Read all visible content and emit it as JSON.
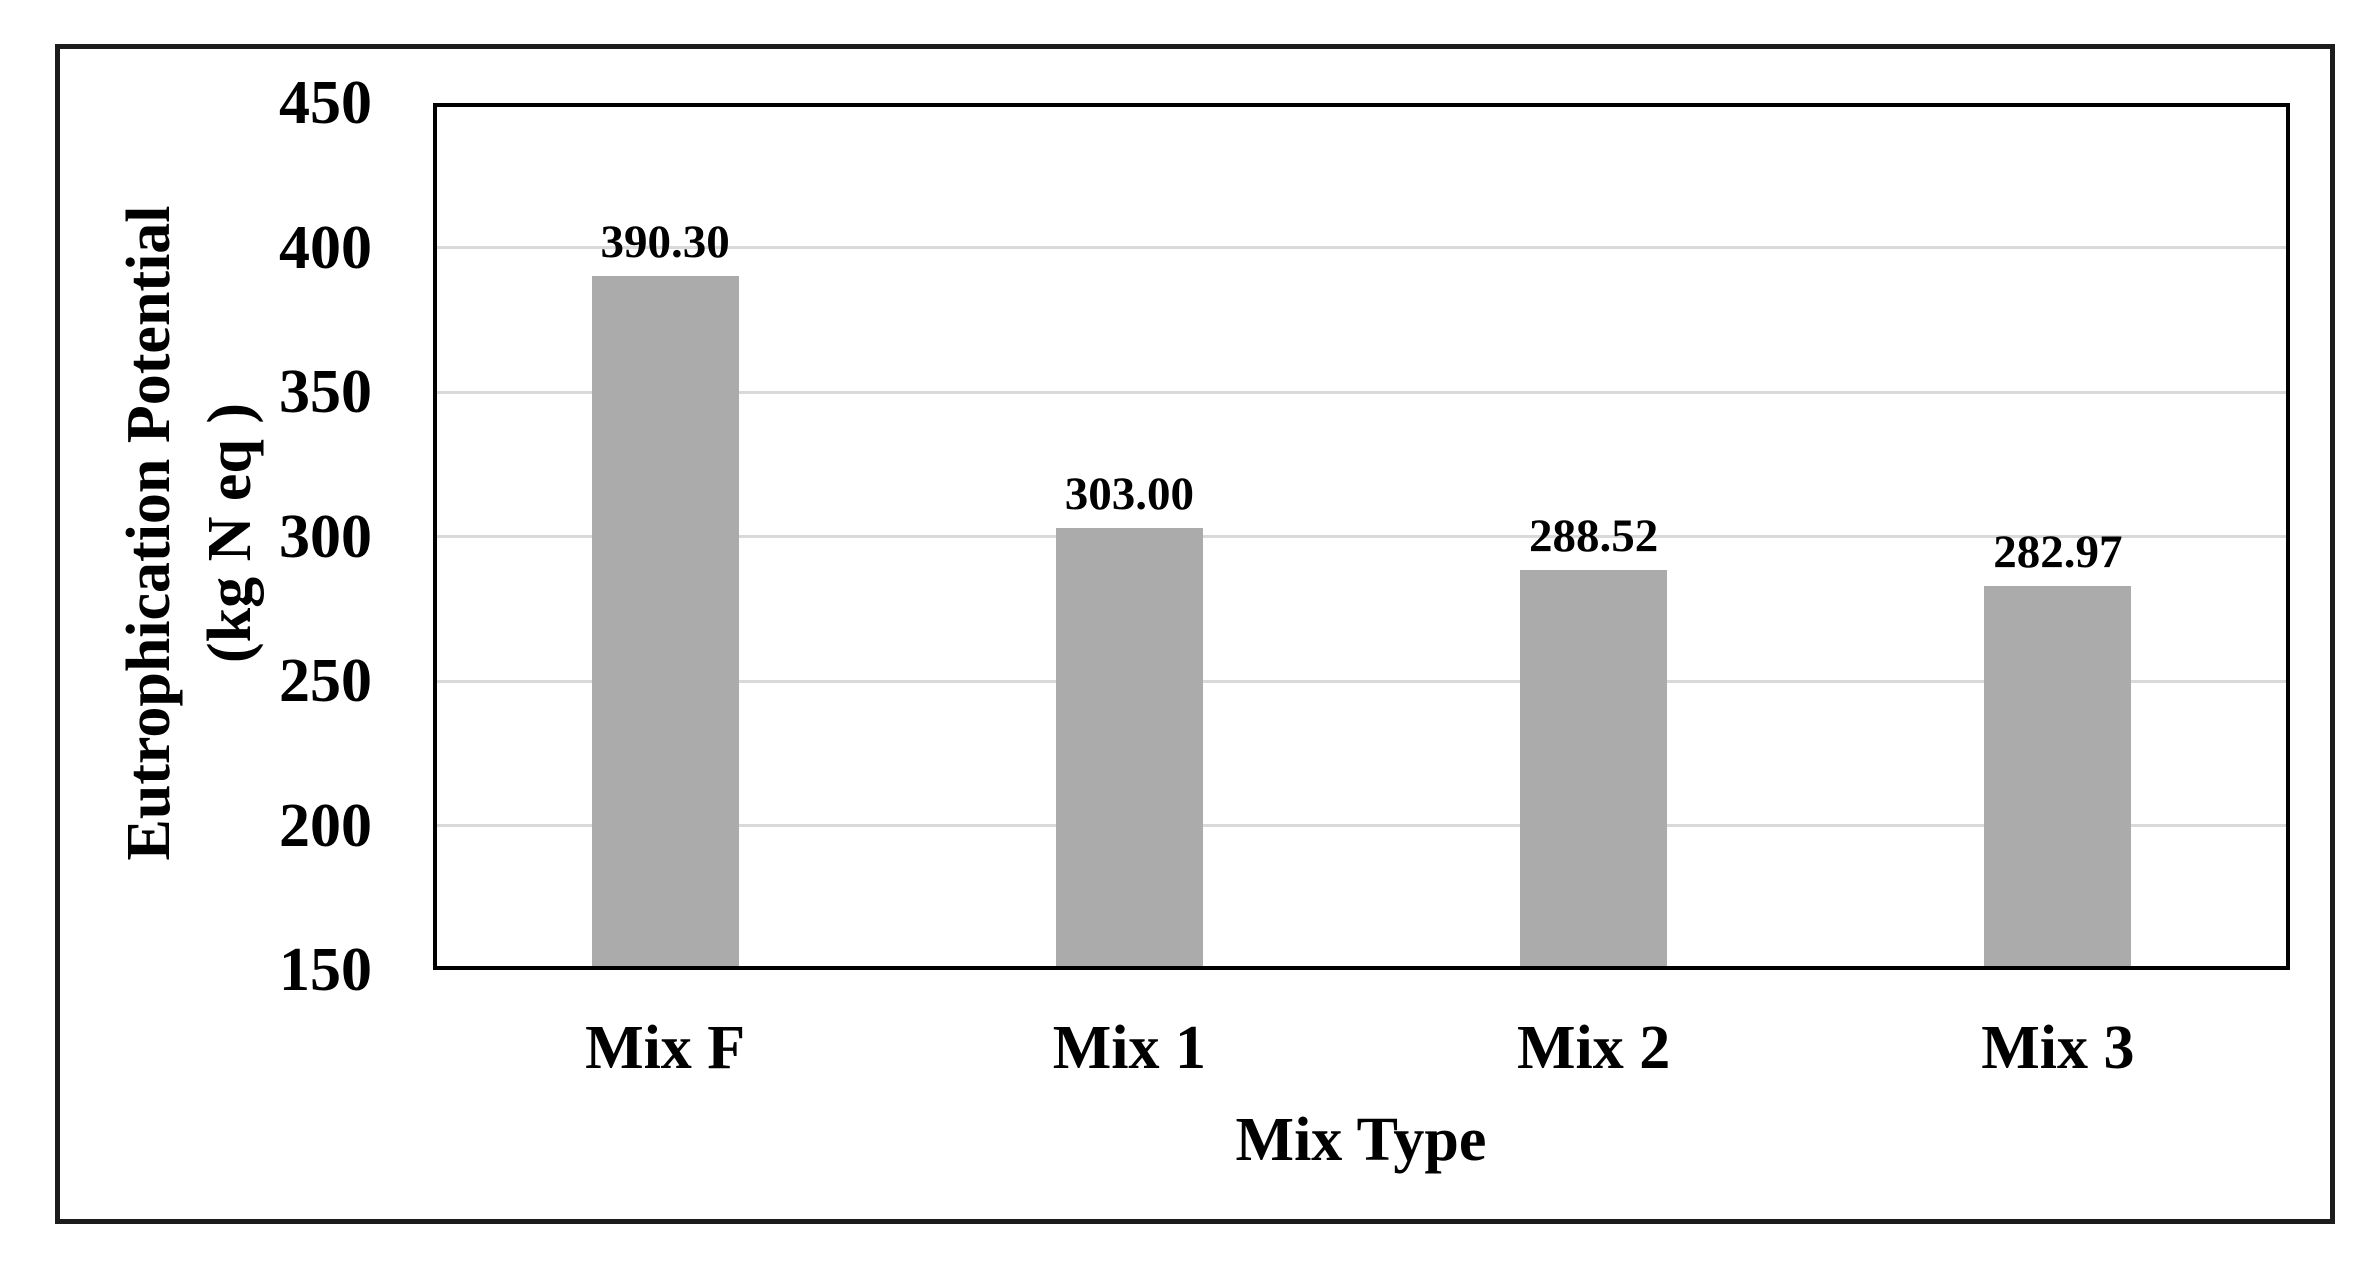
{
  "chart_data": {
    "type": "bar",
    "title": "",
    "categories": [
      "Mix F",
      "Mix 1",
      "Mix 2",
      "Mix 3"
    ],
    "values": [
      390.3,
      303.0,
      288.52,
      282.97
    ],
    "value_labels": [
      "390.30",
      "303.00",
      "288.52",
      "282.97"
    ],
    "xlabel": "Mix Type",
    "ylabel": "Eutrophication Potential (kg N eq )",
    "ylabel_lines": [
      "Eutrophication Potential",
      "(kg N eq )"
    ],
    "ylim": [
      150,
      450
    ],
    "ytick_step": 50,
    "yticks": [
      450,
      400,
      350,
      300,
      250,
      200,
      150
    ],
    "grid": true,
    "legend_position": "none",
    "colors": {
      "bar_fill": "#ababab",
      "gridline": "#d9d9d9",
      "plot_border": "#000000",
      "outer_frame": "#1c1c1c",
      "text": "#000000",
      "background": "#ffffff"
    }
  }
}
